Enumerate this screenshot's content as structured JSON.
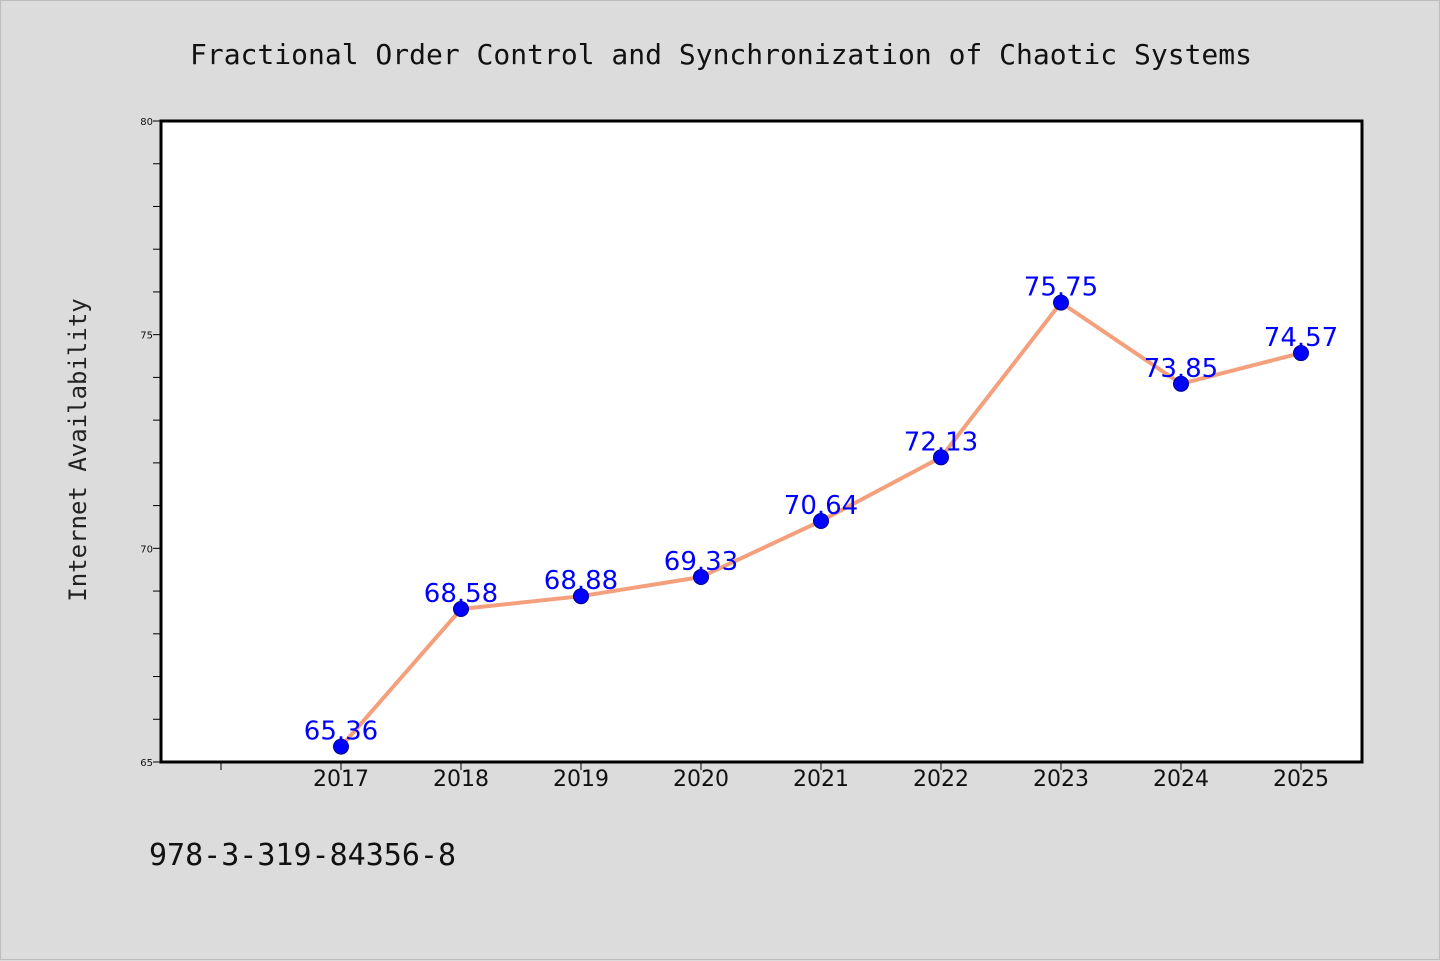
{
  "colors": {
    "page_background": "#dcdcdc",
    "plot_background": "#ffffff",
    "line": "#f4a07c",
    "marker": "#0000ff",
    "data_label": "#0000ff",
    "axis": "#000000"
  },
  "footer": {
    "isbn": "978-3-319-84356-8"
  },
  "chart_data": {
    "type": "line",
    "title": "Fractional Order Control and Synchronization of Chaotic Systems",
    "xlabel": "",
    "ylabel": "Internet Availability",
    "categories": [
      "2017",
      "2018",
      "2019",
      "2020",
      "2021",
      "2022",
      "2023",
      "2024",
      "2025"
    ],
    "series": [
      {
        "values": [
          65.36,
          68.58,
          68.88,
          69.33,
          70.64,
          72.13,
          75.75,
          73.85,
          74.57
        ]
      }
    ],
    "data_labels": [
      "65.36",
      "68.58",
      "68.88",
      "69.33",
      "70.64",
      "72.13",
      "75.75",
      "73.85",
      "74.57"
    ],
    "ylim": [
      65,
      80
    ],
    "yticks": [
      65,
      70,
      75,
      80
    ],
    "ytick_labels": [
      "65",
      "70",
      "75",
      "80"
    ],
    "yminor_step": 1,
    "grid": false,
    "legend": "none"
  }
}
